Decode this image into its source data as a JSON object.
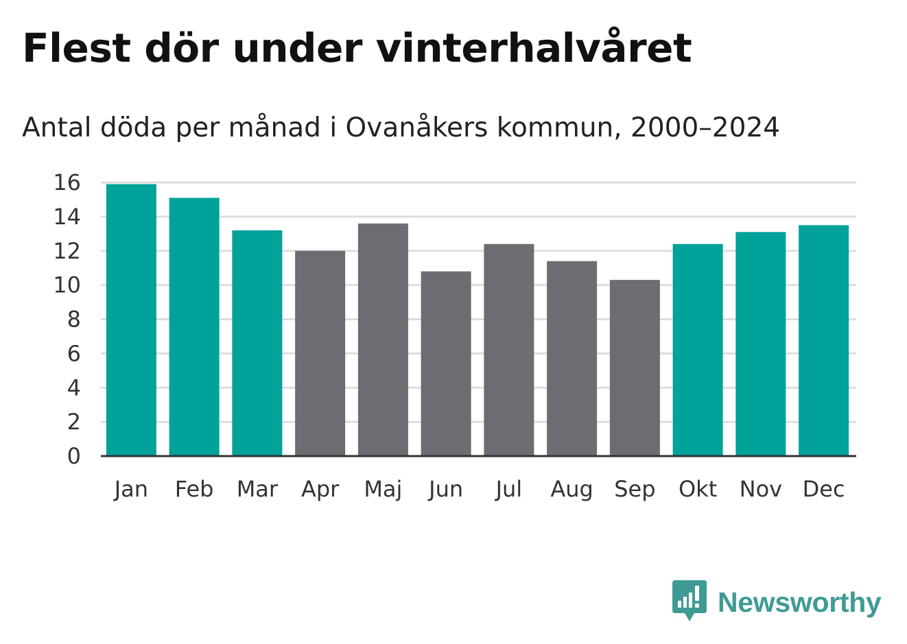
{
  "chart_data": {
    "type": "bar",
    "title": "Flest dör under vinterhalvåret",
    "subtitle": "Antal döda per månad i Ovanåkers kommun, 2000–2024",
    "xlabel": "",
    "ylabel": "",
    "categories": [
      "Jan",
      "Feb",
      "Mar",
      "Apr",
      "Maj",
      "Jun",
      "Jul",
      "Aug",
      "Sep",
      "Okt",
      "Nov",
      "Dec"
    ],
    "values": [
      15.9,
      15.1,
      13.2,
      12.0,
      13.6,
      10.8,
      12.4,
      11.4,
      10.3,
      12.4,
      13.1,
      13.5
    ],
    "groups": [
      "winter",
      "winter",
      "winter",
      "summer",
      "summer",
      "summer",
      "summer",
      "summer",
      "summer",
      "winter",
      "winter",
      "winter"
    ],
    "colors": {
      "winter": "#00a29a",
      "summer": "#6d6c72"
    },
    "ylim": [
      0,
      16
    ],
    "yticks": [
      0,
      2,
      4,
      6,
      8,
      10,
      12,
      14,
      16
    ],
    "grid": true,
    "gridColor": "#dddddd",
    "axisColor": "#333333"
  },
  "branding": {
    "name": "Newsworthy",
    "icon": "newsworthy-logo-icon",
    "color": "#3f9a94"
  }
}
